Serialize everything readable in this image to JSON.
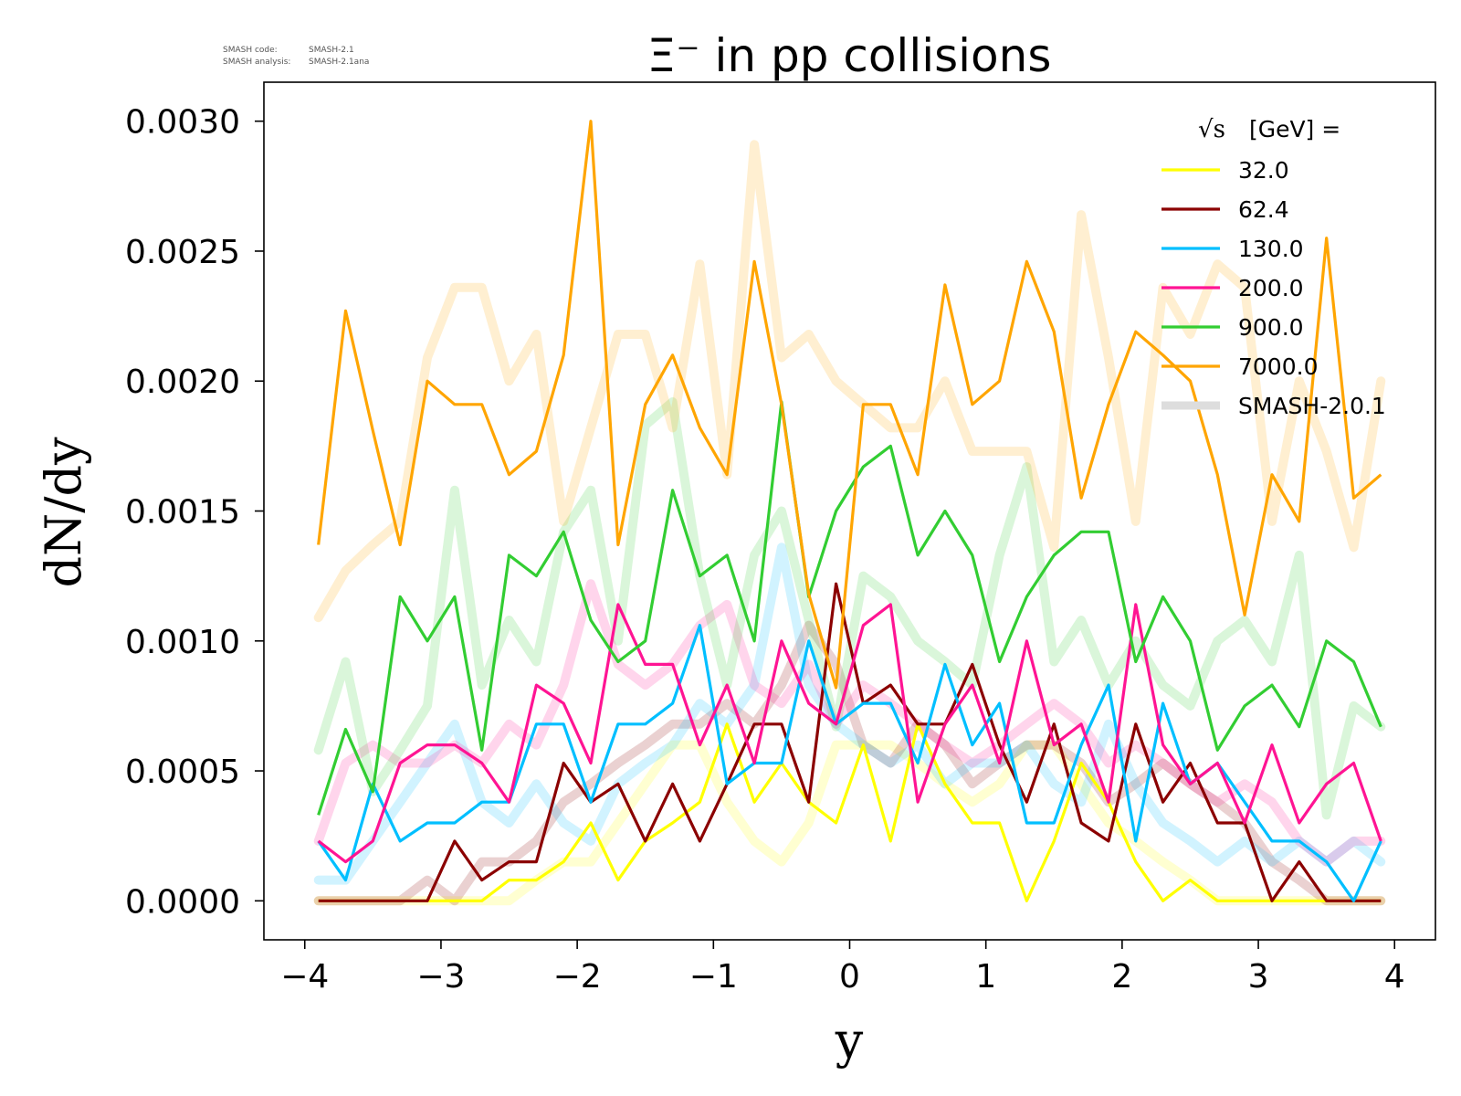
{
  "chart_data": {
    "type": "line",
    "title": "Ξ⁻ in pp collisions",
    "xlabel": "y",
    "ylabel": "dN/dy",
    "xlim": [
      -4.3,
      4.3
    ],
    "ylim": [
      -0.00015,
      0.00315
    ],
    "x_ticks": [
      -4,
      -3,
      -2,
      -1,
      0,
      1,
      2,
      3,
      4
    ],
    "x_tick_labels": [
      "−4",
      "−3",
      "−2",
      "−1",
      "0",
      "1",
      "2",
      "3",
      "4"
    ],
    "y_ticks": [
      0,
      0.0005,
      0.001,
      0.0015,
      0.002,
      0.0025,
      0.003
    ],
    "y_tick_labels": [
      "0.0000",
      "0.0005",
      "0.0010",
      "0.0015",
      "0.0020",
      "0.0025",
      "0.0030"
    ],
    "meta": {
      "code_label": "SMASH code:",
      "code_value": "SMASH-2.1",
      "analysis_label": "SMASH analysis:",
      "analysis_value": "SMASH-2.1ana"
    },
    "legend": {
      "position": "top-right",
      "title_sqrt": "√s",
      "title_rest": " [GeV] =",
      "reference_label": "SMASH-2.0.1",
      "reference_color": "#dddddd"
    },
    "x": [
      -3.9,
      -3.7,
      -3.5,
      -3.3,
      -3.1,
      -2.9,
      -2.7,
      -2.5,
      -2.3,
      -2.1,
      -1.9,
      -1.7,
      -1.5,
      -1.3,
      -1.1,
      -0.9,
      -0.7,
      -0.5,
      -0.3,
      -0.1,
      0.1,
      0.3,
      0.5,
      0.7,
      0.9,
      1.1,
      1.3,
      1.5,
      1.7,
      1.9,
      2.1,
      2.3,
      2.5,
      2.7,
      2.9,
      3.1,
      3.3,
      3.5,
      3.7,
      3.9
    ],
    "series": [
      {
        "name": "32.0",
        "color": "#ffff00",
        "values": [
          0,
          0,
          0,
          0,
          0,
          0,
          0,
          8e-05,
          8e-05,
          0.00015,
          0.0003,
          8e-05,
          0.00023,
          0.0003,
          0.00038,
          0.00068,
          0.00038,
          0.00053,
          0.00038,
          0.0003,
          0.0006,
          0.00023,
          0.00068,
          0.00045,
          0.0003,
          0.0003,
          0,
          0.00023,
          0.00053,
          0.00038,
          0.00015,
          0,
          8e-05,
          0,
          0,
          0,
          0,
          0,
          0,
          0
        ],
        "reference": [
          0,
          0,
          0,
          0,
          0,
          0,
          0,
          0,
          8e-05,
          0.00015,
          0.00015,
          0.0003,
          0.00045,
          0.0006,
          0.0006,
          0.00038,
          0.00023,
          0.00015,
          0.0003,
          0.0006,
          0.0006,
          0.0006,
          0.00053,
          0.00045,
          0.00038,
          0.00045,
          0.0006,
          0.0006,
          0.00045,
          0.0003,
          0.00023,
          0.00015,
          8e-05,
          0,
          0,
          0,
          0,
          0,
          0,
          0
        ]
      },
      {
        "name": "62.4",
        "color": "#8b0000",
        "values": [
          0,
          0,
          0,
          0,
          0,
          0.00023,
          8e-05,
          0.00015,
          0.00015,
          0.00053,
          0.00038,
          0.00045,
          0.00023,
          0.00045,
          0.00023,
          0.00045,
          0.00068,
          0.00068,
          0.00038,
          0.00122,
          0.00076,
          0.00083,
          0.00068,
          0.00068,
          0.00091,
          0.0006,
          0.00038,
          0.00068,
          0.0003,
          0.00023,
          0.00068,
          0.00038,
          0.00053,
          0.0003,
          0.0003,
          0,
          0.00015,
          0,
          0,
          0
        ],
        "reference": [
          0,
          0,
          0,
          0,
          8e-05,
          0,
          0.00015,
          0.00015,
          0.00023,
          0.00038,
          0.00045,
          0.00053,
          0.0006,
          0.00068,
          0.00068,
          0.00076,
          0.00068,
          0.00083,
          0.00106,
          0.00091,
          0.0006,
          0.00053,
          0.00068,
          0.0006,
          0.00045,
          0.00053,
          0.0006,
          0.0006,
          0.00053,
          0.00038,
          0.00045,
          0.00053,
          0.00045,
          0.00038,
          0.0003,
          0.00015,
          8e-05,
          0,
          0,
          0
        ]
      },
      {
        "name": "130.0",
        "color": "#00bfff",
        "values": [
          0.00023,
          8e-05,
          0.00045,
          0.00023,
          0.0003,
          0.0003,
          0.00038,
          0.00038,
          0.00068,
          0.00068,
          0.00038,
          0.00068,
          0.00068,
          0.00076,
          0.00106,
          0.00045,
          0.00053,
          0.00053,
          0.001,
          0.00068,
          0.00076,
          0.00076,
          0.00053,
          0.00091,
          0.0006,
          0.00076,
          0.0003,
          0.0003,
          0.0006,
          0.00083,
          0.00023,
          0.00076,
          0.00045,
          0.00053,
          0.00038,
          0.00023,
          0.00023,
          0.00015,
          0,
          0.00023
        ],
        "reference": [
          8e-05,
          8e-05,
          0.00023,
          0.00038,
          0.00053,
          0.00068,
          0.00038,
          0.0003,
          0.00045,
          0.0003,
          0.00023,
          0.00045,
          0.00053,
          0.0006,
          0.00076,
          0.00068,
          0.00083,
          0.00136,
          0.00083,
          0.00068,
          0.0006,
          0.00053,
          0.0006,
          0.00045,
          0.00053,
          0.00053,
          0.0006,
          0.00045,
          0.00038,
          0.00068,
          0.00045,
          0.0003,
          0.00023,
          0.00015,
          0.00023,
          0.00015,
          0.00023,
          0.00015,
          0.00023,
          0.00015
        ]
      },
      {
        "name": "200.0",
        "color": "#ff1493",
        "values": [
          0.00023,
          0.00015,
          0.00023,
          0.00053,
          0.0006,
          0.0006,
          0.00053,
          0.00038,
          0.00083,
          0.00076,
          0.00053,
          0.00114,
          0.00091,
          0.00091,
          0.0006,
          0.00083,
          0.00053,
          0.001,
          0.00076,
          0.00068,
          0.00106,
          0.00114,
          0.00038,
          0.00068,
          0.00083,
          0.00053,
          0.001,
          0.0006,
          0.00068,
          0.00038,
          0.00114,
          0.0006,
          0.00045,
          0.00053,
          0.0003,
          0.0006,
          0.0003,
          0.00045,
          0.00053,
          0.00023
        ],
        "reference": [
          0.00023,
          0.00053,
          0.0006,
          0.00053,
          0.00053,
          0.0006,
          0.00053,
          0.00068,
          0.0006,
          0.00083,
          0.00122,
          0.00091,
          0.00083,
          0.00091,
          0.00106,
          0.00114,
          0.00083,
          0.00076,
          0.00091,
          0.00068,
          0.00083,
          0.00076,
          0.00068,
          0.0006,
          0.00053,
          0.0006,
          0.00068,
          0.00076,
          0.00068,
          0.00053,
          0.0006,
          0.00053,
          0.00045,
          0.00038,
          0.00045,
          0.00038,
          0.00023,
          0.00015,
          0.00023,
          0.00023
        ]
      },
      {
        "name": "900.0",
        "color": "#32cd32",
        "values": [
          0.00033,
          0.00066,
          0.00042,
          0.00117,
          0.001,
          0.00117,
          0.00058,
          0.00133,
          0.00125,
          0.00142,
          0.00108,
          0.00092,
          0.001,
          0.00158,
          0.00125,
          0.00133,
          0.001,
          0.00192,
          0.00117,
          0.0015,
          0.00167,
          0.00175,
          0.00133,
          0.0015,
          0.00133,
          0.00092,
          0.00117,
          0.00133,
          0.00142,
          0.00142,
          0.00092,
          0.00117,
          0.001,
          0.00058,
          0.00075,
          0.00083,
          0.00067,
          0.001,
          0.00092,
          0.00067
        ],
        "reference": [
          0.00058,
          0.00092,
          0.00042,
          0.00058,
          0.00075,
          0.00158,
          0.00083,
          0.00108,
          0.00092,
          0.00142,
          0.00158,
          0.001,
          0.00183,
          0.00192,
          0.00125,
          0.00083,
          0.00133,
          0.0015,
          0.00108,
          0.00067,
          0.00125,
          0.00117,
          0.001,
          0.00092,
          0.00083,
          0.00133,
          0.00167,
          0.00092,
          0.00108,
          0.00083,
          0.001,
          0.00083,
          0.00075,
          0.001,
          0.00108,
          0.00092,
          0.00133,
          0.00033,
          0.00075,
          0.00067
        ]
      },
      {
        "name": "7000.0",
        "color": "#ffa500",
        "values": [
          0.00137,
          0.00227,
          0.00181,
          0.00137,
          0.002,
          0.00191,
          0.00191,
          0.00164,
          0.00173,
          0.0021,
          0.003,
          0.00137,
          0.00191,
          0.0021,
          0.00182,
          0.00164,
          0.00246,
          0.00191,
          0.00118,
          0.00082,
          0.00191,
          0.00191,
          0.00164,
          0.00237,
          0.00191,
          0.002,
          0.00246,
          0.00219,
          0.00155,
          0.00191,
          0.00219,
          0.0021,
          0.002,
          0.00164,
          0.0011,
          0.00164,
          0.00146,
          0.00255,
          0.00155,
          0.00164
        ],
        "reference": [
          0.00109,
          0.00127,
          0.00137,
          0.00146,
          0.00209,
          0.00236,
          0.00236,
          0.002,
          0.00218,
          0.00146,
          0.00182,
          0.00218,
          0.00218,
          0.00182,
          0.00245,
          0.00164,
          0.00291,
          0.00209,
          0.00218,
          0.002,
          0.00191,
          0.00182,
          0.00182,
          0.002,
          0.00173,
          0.00173,
          0.00173,
          0.00136,
          0.00264,
          0.00209,
          0.00146,
          0.00236,
          0.00218,
          0.00245,
          0.00236,
          0.00146,
          0.002,
          0.00173,
          0.00136,
          0.002
        ]
      }
    ]
  }
}
